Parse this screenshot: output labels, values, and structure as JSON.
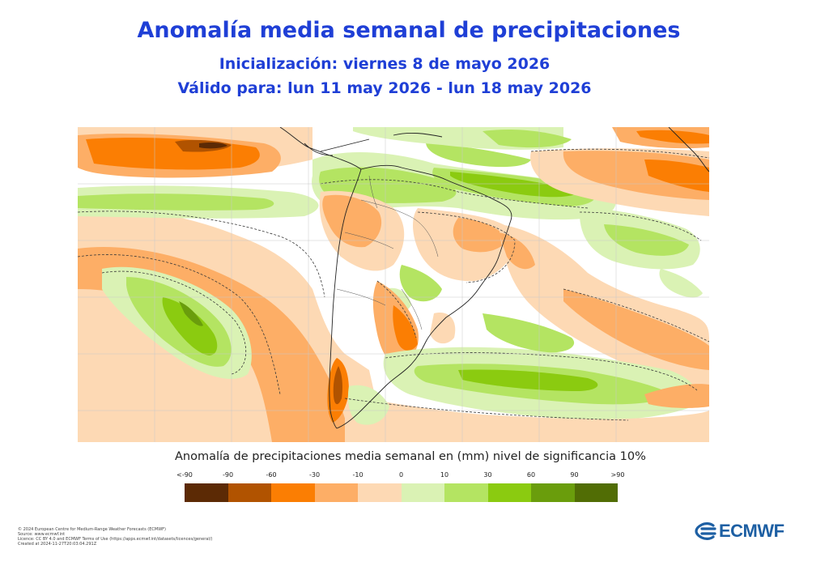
{
  "header": {
    "title": "Anomalía media semanal de precipitaciones",
    "initialization": "Inicialización: viernes 8 de mayo 2026",
    "valid": "Válido para: lun 11 may 2026 - lun 18 may 2026"
  },
  "legend": {
    "title": "Anomalía de precipitaciones media semanal en (mm) nivel de significancia 10%",
    "labels": [
      "<-90",
      "-90",
      "-60",
      "-30",
      "-10",
      "0",
      "10",
      "30",
      "60",
      "90",
      ">90"
    ],
    "colors": [
      "#5c2a05",
      "#b15300",
      "#fb7e03",
      "#fdae66",
      "#fdd9b4",
      "#daf2b4",
      "#b4e462",
      "#8bcb10",
      "#6a9d0c",
      "#516d05"
    ]
  },
  "palette": {
    "neutral": "#ffffff",
    "neg_light": "#fdd9b4",
    "neg_mid": "#fdae66",
    "neg_strong": "#fb7e03",
    "neg_deep": "#b15300",
    "neg_extreme": "#5c2a05",
    "pos_light": "#daf2b4",
    "pos_mid": "#b4e462",
    "pos_strong": "#8bcb10",
    "pos_deep": "#6a9d0c",
    "title_color": "#1f3fd6",
    "logo_color": "#1d5fa3"
  },
  "credits": [
    "© 2024 European Centre for Medium-Range Weather Forecasts (ECMWF)",
    "Source: www.ecmwf.int",
    "Licence: CC BY 4.0 and ECMWF Terms of Use (https://apps.ecmwf.int/datasets/licences/general/)",
    "Created at 2024-11-27T20:03:04.291Z"
  ],
  "logo": {
    "text": "ECMWF",
    "icon": "ecmwf-logo-icon"
  }
}
